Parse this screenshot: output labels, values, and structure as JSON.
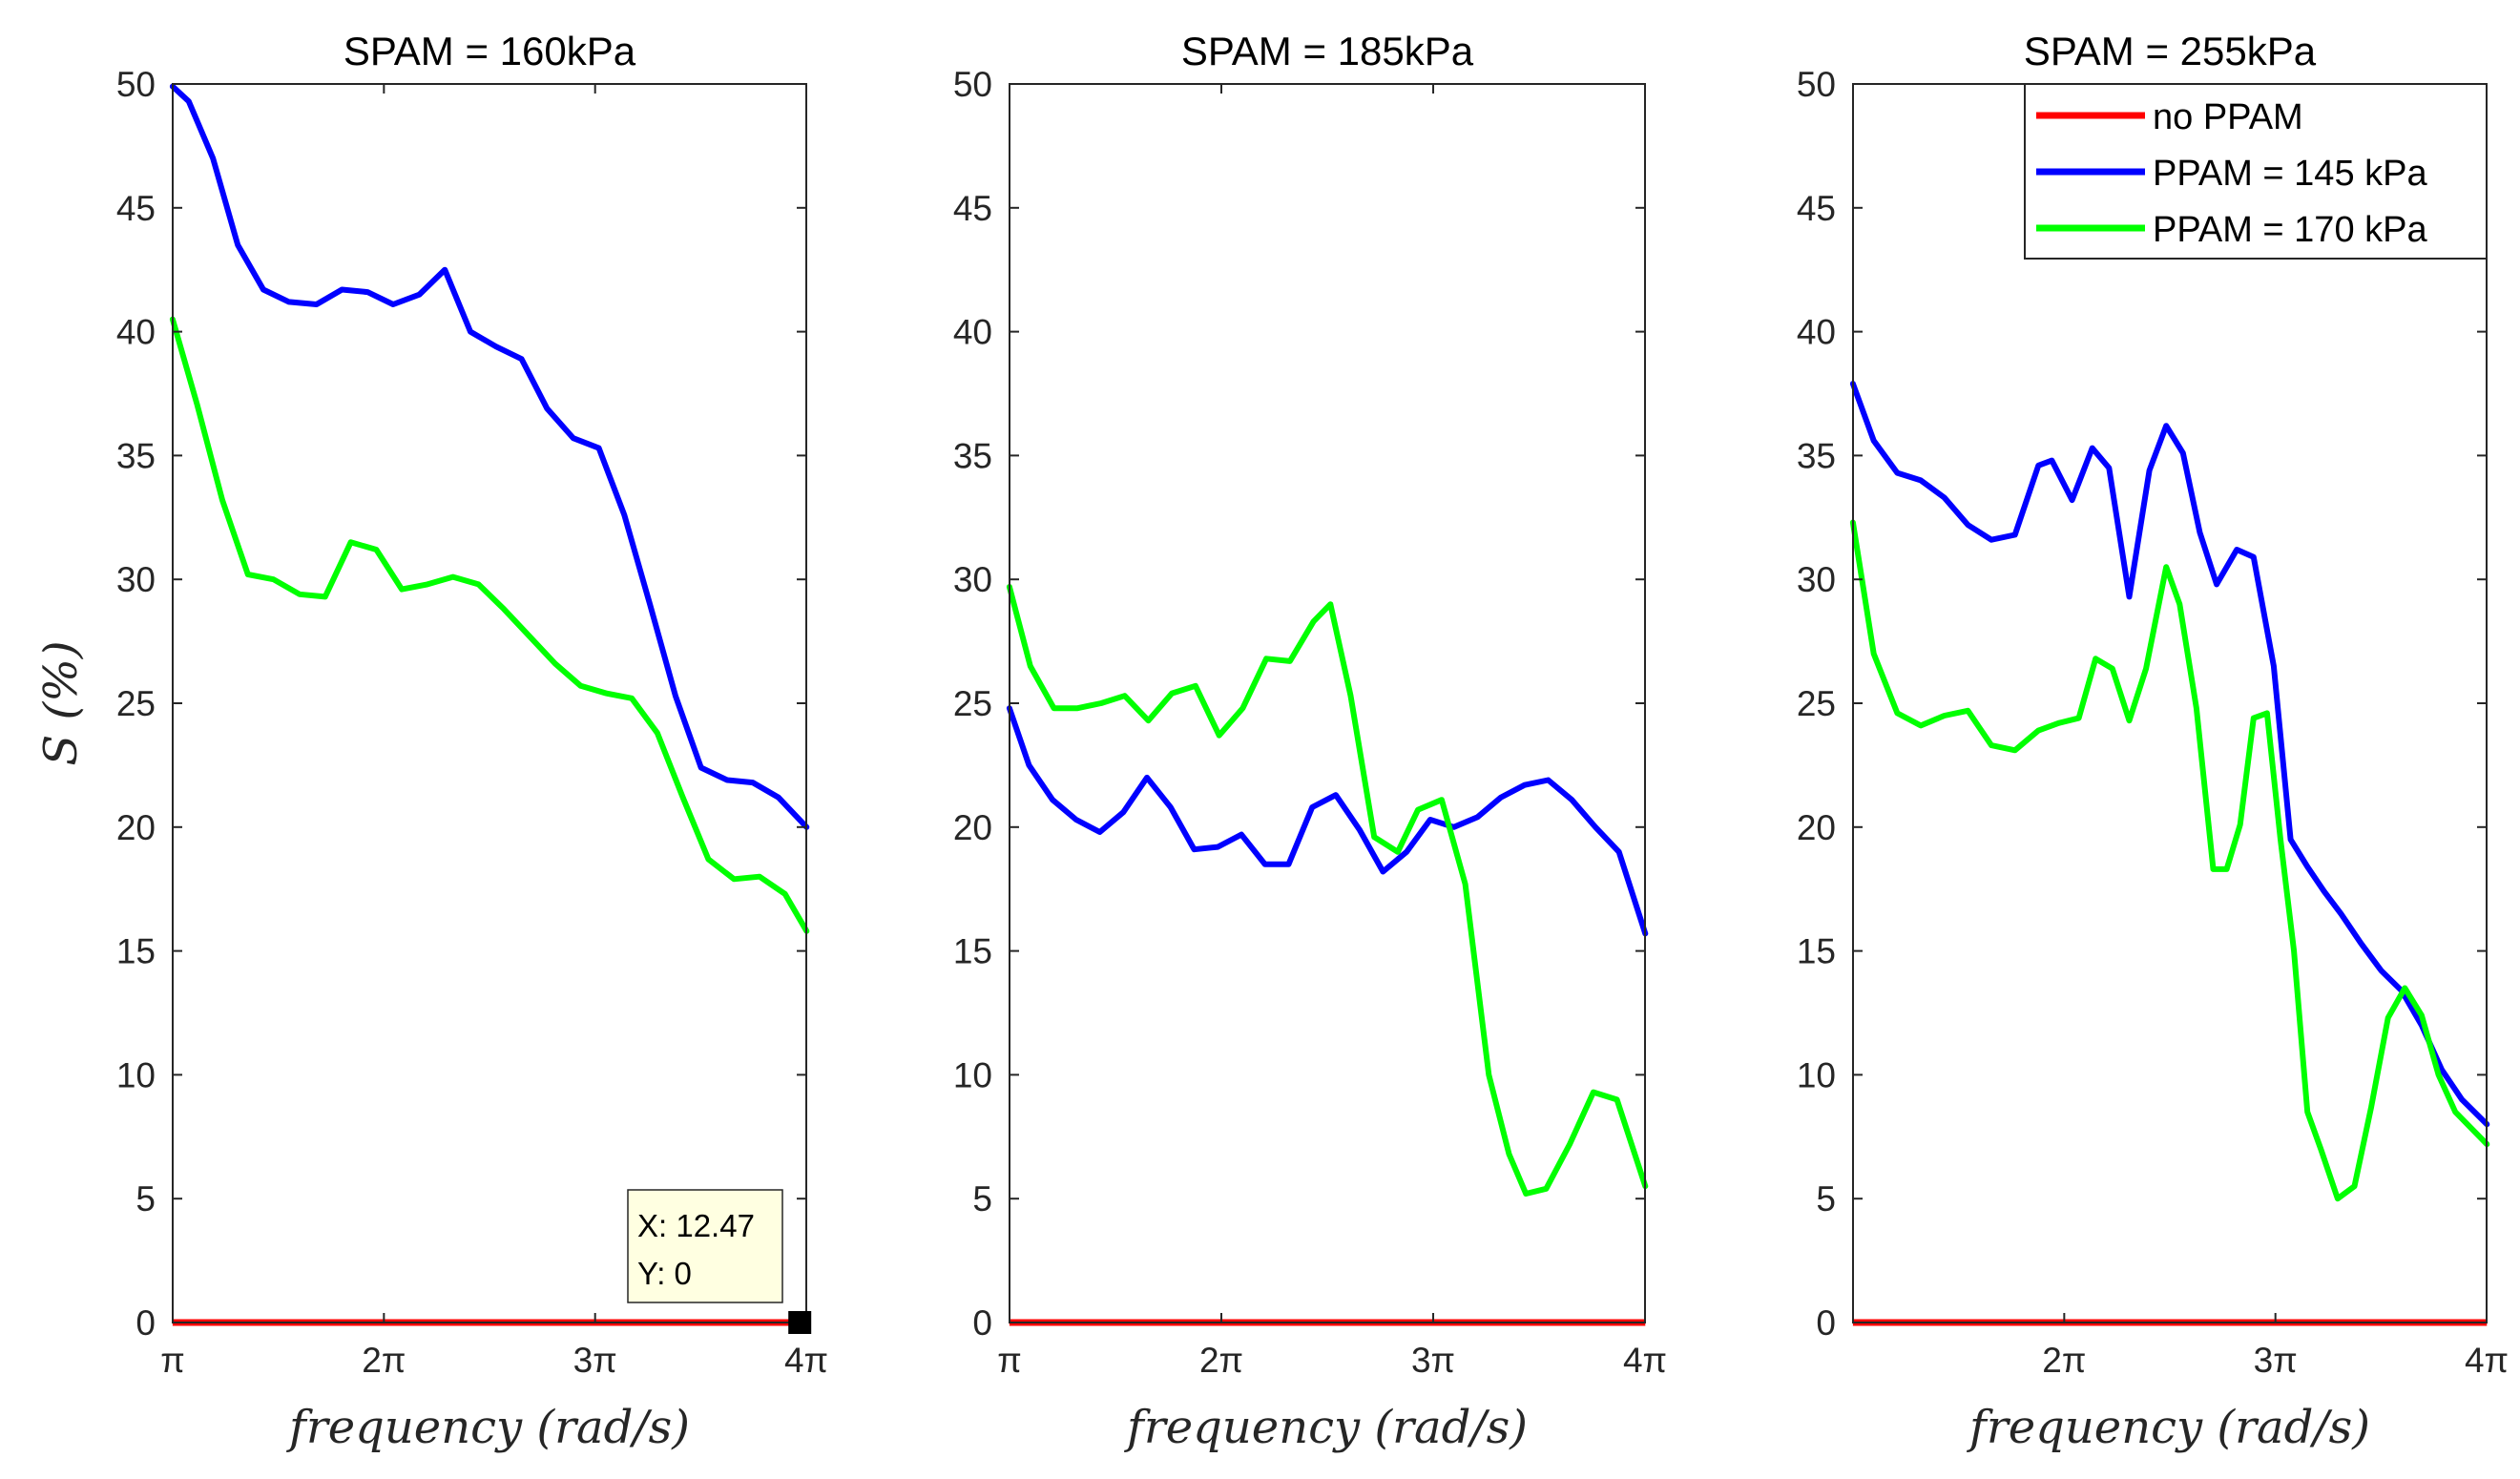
{
  "chart_data": {
    "type": "line",
    "y_axis_label": "S (%)",
    "x_axis_label": "frequency (rad/s)",
    "ylim": [
      0,
      50
    ],
    "y_ticks": [
      0,
      5,
      10,
      15,
      20,
      25,
      30,
      35,
      40,
      45,
      50
    ],
    "series_styles": [
      {
        "name": "no PPAM",
        "color": "#ff0000"
      },
      {
        "name": "PPAM = 145 kPa",
        "color": "#0000ff"
      },
      {
        "name": "PPAM = 170 kPa",
        "color": "#00ff00"
      }
    ],
    "legend": {
      "placement": "top-right of third panel",
      "entries": [
        "no PPAM",
        "PPAM = 145 kPa",
        "PPAM = 170 kPa"
      ]
    },
    "datatip": {
      "x_label": "X: 12.47",
      "y_label": "Y: 0",
      "x": 12.47,
      "y": 0
    },
    "panels": [
      {
        "title": "SPAM = 160kPa",
        "xlim": [
          3.1416,
          12.566
        ],
        "x_ticks": [
          3.1416,
          6.2832,
          9.4248,
          12.566
        ],
        "x_tick_labels": [
          "π",
          "2π",
          "3π",
          "4π"
        ],
        "series": [
          {
            "name": "no PPAM",
            "x": [
              3.14,
              12.57
            ],
            "y": [
              0,
              0
            ]
          },
          {
            "name": "PPAM = 145 kPa",
            "x": [
              3.14,
              3.38,
              3.74,
              4.11,
              4.49,
              4.87,
              5.28,
              5.66,
              6.04,
              6.42,
              6.81,
              7.19,
              7.57,
              7.95,
              8.33,
              8.71,
              9.1,
              9.48,
              9.86,
              10.24,
              10.62,
              11.0,
              11.39,
              11.77,
              12.15,
              12.57
            ],
            "y": [
              49.9,
              49.3,
              47.0,
              43.5,
              41.7,
              41.2,
              41.1,
              41.7,
              41.6,
              41.1,
              41.5,
              42.5,
              40.0,
              39.4,
              38.9,
              36.9,
              35.7,
              35.3,
              32.6,
              29.0,
              25.3,
              22.4,
              21.9,
              21.8,
              21.2,
              20.0
            ]
          },
          {
            "name": "PPAM = 170 kPa",
            "x": [
              3.14,
              3.5,
              3.88,
              4.26,
              4.64,
              5.03,
              5.41,
              5.79,
              6.17,
              6.55,
              6.93,
              7.31,
              7.69,
              8.07,
              8.45,
              8.83,
              9.21,
              9.59,
              9.97,
              10.35,
              10.73,
              11.11,
              11.49,
              11.87,
              12.25,
              12.57
            ],
            "y": [
              40.5,
              37.1,
              33.2,
              30.2,
              30.0,
              29.4,
              29.3,
              31.5,
              31.2,
              29.6,
              29.8,
              30.1,
              29.8,
              28.8,
              27.7,
              26.6,
              25.7,
              25.4,
              25.2,
              23.8,
              21.2,
              18.7,
              17.9,
              18.0,
              17.3,
              15.8
            ]
          }
        ]
      },
      {
        "title": "SPAM = 185kPa",
        "xlim": [
          3.1416,
          12.566
        ],
        "x_ticks": [
          3.1416,
          6.2832,
          9.4248,
          12.566
        ],
        "x_tick_labels": [
          "π",
          "2π",
          "3π",
          "4π"
        ],
        "series": [
          {
            "name": "no PPAM",
            "x": [
              3.14,
              12.57
            ],
            "y": [
              0,
              0
            ]
          },
          {
            "name": "PPAM = 145 kPa",
            "x": [
              3.14,
              3.43,
              3.78,
              4.13,
              4.48,
              4.83,
              5.18,
              5.53,
              5.88,
              6.23,
              6.58,
              6.93,
              7.28,
              7.63,
              7.98,
              8.33,
              8.68,
              9.03,
              9.38,
              9.73,
              10.08,
              10.43,
              10.78,
              11.13,
              11.48,
              11.83,
              12.18,
              12.57
            ],
            "y": [
              24.8,
              22.5,
              21.1,
              20.3,
              19.8,
              20.6,
              22.0,
              20.8,
              19.1,
              19.2,
              19.7,
              18.5,
              18.5,
              20.8,
              21.3,
              19.9,
              18.2,
              19.0,
              20.3,
              20.0,
              20.4,
              21.2,
              21.7,
              21.9,
              21.1,
              20.0,
              19.0,
              15.7
            ]
          },
          {
            "name": "PPAM = 170 kPa",
            "x": [
              3.14,
              3.45,
              3.8,
              4.15,
              4.5,
              4.85,
              5.2,
              5.55,
              5.9,
              6.25,
              6.6,
              6.95,
              7.3,
              7.65,
              7.9,
              8.2,
              8.55,
              8.9,
              9.2,
              9.55,
              9.9,
              10.25,
              10.55,
              10.8,
              11.1,
              11.45,
              11.8,
              12.15,
              12.57
            ],
            "y": [
              29.7,
              26.5,
              24.8,
              24.8,
              25.0,
              25.3,
              24.3,
              25.4,
              25.7,
              23.7,
              24.8,
              26.8,
              26.7,
              28.3,
              29.0,
              25.3,
              19.6,
              19.0,
              20.7,
              21.1,
              17.7,
              10.0,
              6.8,
              5.2,
              5.4,
              7.2,
              9.3,
              9.0,
              5.5
            ]
          }
        ]
      },
      {
        "title": "SPAM = 255kPa",
        "xlim": [
          3.1416,
          12.566
        ],
        "x_ticks": [
          6.2832,
          9.4248,
          12.566
        ],
        "x_tick_labels": [
          "2π",
          "3π",
          "4π"
        ],
        "series": [
          {
            "name": "no PPAM",
            "x": [
              3.14,
              12.57
            ],
            "y": [
              0,
              0
            ]
          },
          {
            "name": "PPAM = 145 kPa",
            "x": [
              3.14,
              3.45,
              3.8,
              4.15,
              4.5,
              4.85,
              5.2,
              5.55,
              5.9,
              6.1,
              6.4,
              6.7,
              6.95,
              7.25,
              7.55,
              7.8,
              8.05,
              8.3,
              8.55,
              8.85,
              9.1,
              9.4,
              9.65,
              9.9,
              10.15,
              10.4,
              10.7,
              11.0,
              11.3,
              11.6,
              11.9,
              12.2,
              12.57
            ],
            "y": [
              37.9,
              35.6,
              34.3,
              34.0,
              33.3,
              32.2,
              31.6,
              31.8,
              34.6,
              34.8,
              33.2,
              35.3,
              34.5,
              29.3,
              34.4,
              36.2,
              35.1,
              31.9,
              29.8,
              31.2,
              30.9,
              26.5,
              19.5,
              18.4,
              17.4,
              16.5,
              15.3,
              14.2,
              13.4,
              12.0,
              10.2,
              9.0,
              8.0
            ]
          },
          {
            "name": "PPAM = 170 kPa",
            "x": [
              3.14,
              3.45,
              3.8,
              4.15,
              4.5,
              4.85,
              5.2,
              5.55,
              5.9,
              6.2,
              6.5,
              6.75,
              7.0,
              7.25,
              7.5,
              7.8,
              8.0,
              8.25,
              8.5,
              8.7,
              8.9,
              9.1,
              9.3,
              9.5,
              9.7,
              9.9,
              10.1,
              10.35,
              10.6,
              10.85,
              11.1,
              11.35,
              11.6,
              11.85,
              12.1,
              12.57
            ],
            "y": [
              32.3,
              27.0,
              24.6,
              24.1,
              24.5,
              24.7,
              23.3,
              23.1,
              23.9,
              24.2,
              24.4,
              26.8,
              26.4,
              24.3,
              26.4,
              30.5,
              29.0,
              24.8,
              18.3,
              18.3,
              20.1,
              24.4,
              24.6,
              19.5,
              15.0,
              8.5,
              7.0,
              5.0,
              5.5,
              8.7,
              12.3,
              13.5,
              12.4,
              10.0,
              8.5,
              7.2
            ]
          }
        ]
      }
    ]
  }
}
